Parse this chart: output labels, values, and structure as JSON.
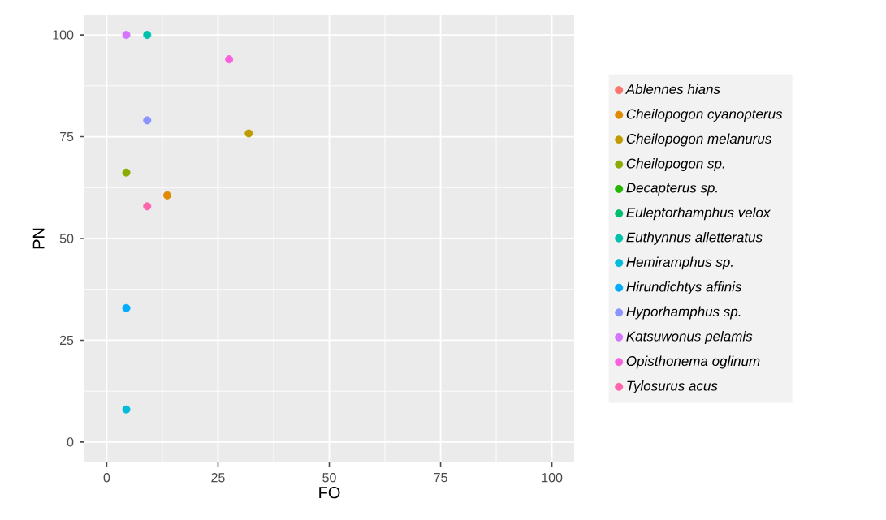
{
  "chart_data": {
    "type": "scatter",
    "xlabel": "FO",
    "ylabel": "PN",
    "xlim": [
      -5,
      105
    ],
    "ylim": [
      -5,
      105
    ],
    "xticks": [
      0,
      25,
      50,
      75,
      100
    ],
    "yticks": [
      0,
      25,
      50,
      75,
      100
    ],
    "grid": true,
    "legend": "right",
    "marker": "circle",
    "series": [
      {
        "name": "*Ablennes hians*",
        "color": "#f8766d",
        "x": [
          null
        ],
        "values": [
          null
        ]
      },
      {
        "name": "*Cheilopogon cyanopterus*",
        "color": "#e18a00",
        "x": [
          13.6
        ],
        "values": [
          60.6
        ]
      },
      {
        "name": "*Cheilopogon melanurus*",
        "color": "#be9c00",
        "x": [
          31.9
        ],
        "values": [
          75.8
        ]
      },
      {
        "name": "*Cheilopogon* sp.",
        "color": "#8cab00",
        "x": [
          4.4
        ],
        "values": [
          66.2
        ]
      },
      {
        "name": "*Decapterus* sp.",
        "color": "#24b700",
        "x": [
          null
        ],
        "values": [
          null
        ]
      },
      {
        "name": "*Euleptorhamphus velox*",
        "color": "#00be70",
        "x": [
          null
        ],
        "values": [
          null
        ]
      },
      {
        "name": "*Euthynnus alletteratus*",
        "color": "#00c1ab",
        "x": [
          9.1
        ],
        "values": [
          100
        ]
      },
      {
        "name": "*Hemiramphus* sp.",
        "color": "#00bbda",
        "x": [
          4.4
        ],
        "values": [
          8.0
        ]
      },
      {
        "name": "*Hirundichtys affinis*",
        "color": "#00acfc",
        "x": [
          4.4
        ],
        "values": [
          32.9
        ]
      },
      {
        "name": "*Hyporhamphus* sp.",
        "color": "#8b93ff",
        "x": [
          9.1
        ],
        "values": [
          79.0
        ]
      },
      {
        "name": "*Katsuwonus pelamis*",
        "color": "#d575fe",
        "x": [
          4.4
        ],
        "values": [
          100
        ]
      },
      {
        "name": "*Opisthonema oglinum*",
        "color": "#f962dd",
        "x": [
          27.5
        ],
        "values": [
          94.0
        ]
      },
      {
        "name": "*Tylosurus acus*",
        "color": "#ff65ac",
        "x": [
          9.1
        ],
        "values": [
          57.9
        ]
      }
    ]
  }
}
